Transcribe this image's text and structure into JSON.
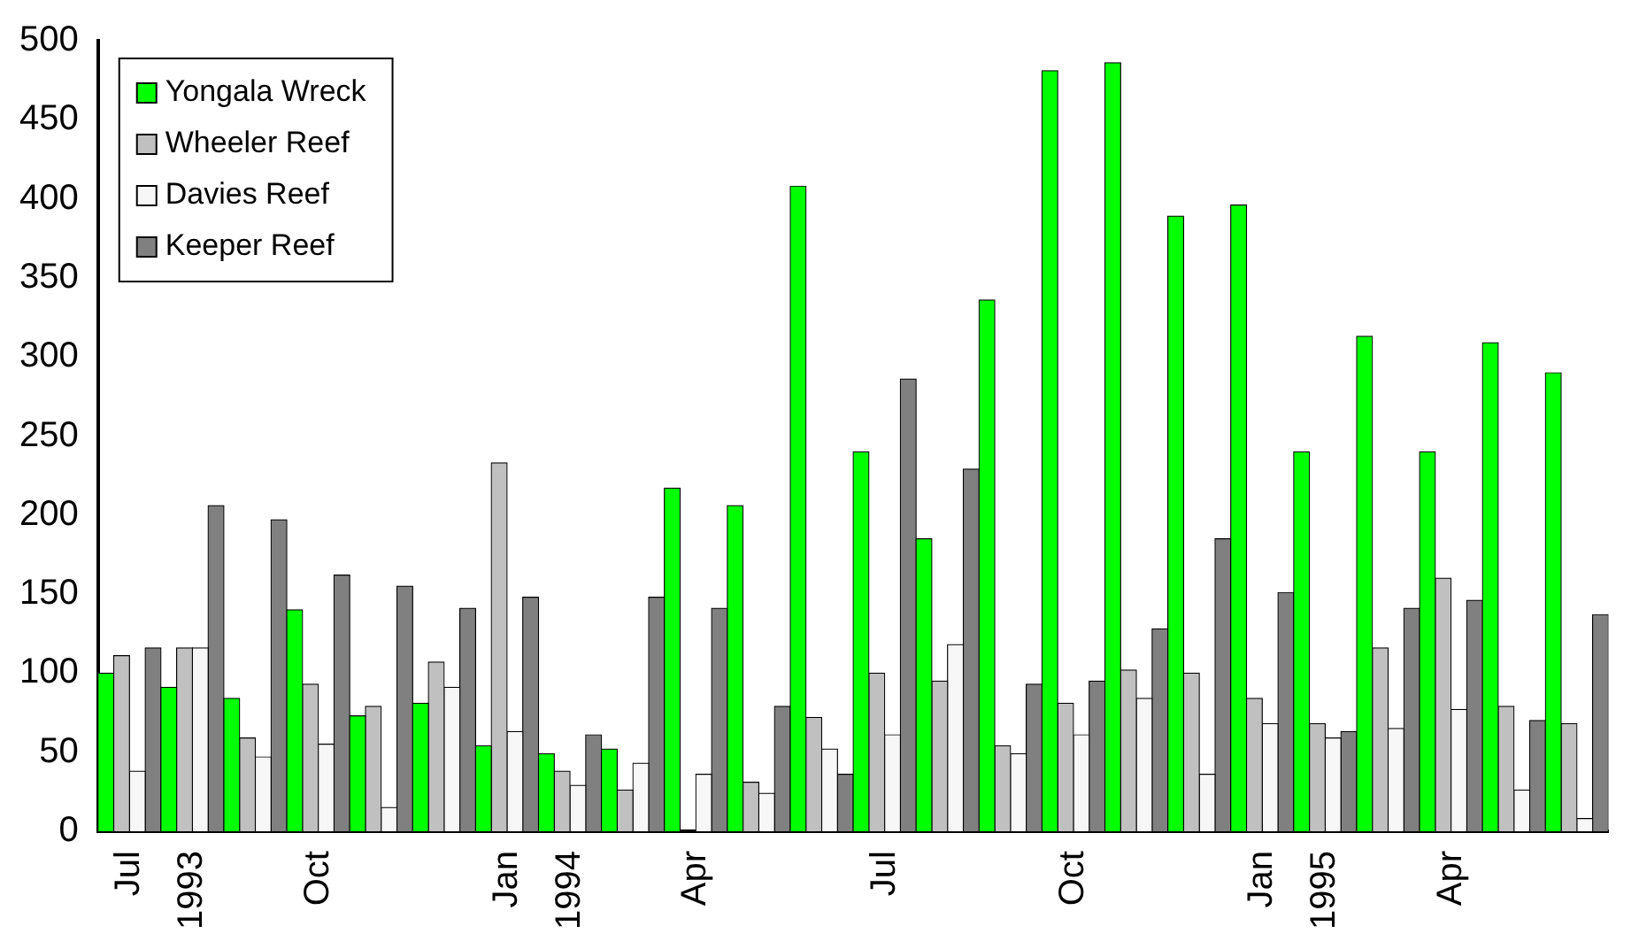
{
  "chart_data": {
    "type": "bar",
    "categories": [
      "Jul",
      "1993",
      null,
      "Oct",
      null,
      null,
      "Jan",
      "1994",
      null,
      "Apr",
      null,
      null,
      "Jul",
      null,
      null,
      "Oct",
      null,
      null,
      "Jan",
      "1995",
      null,
      "Apr",
      null,
      null
    ],
    "series": [
      {
        "name": "Yongala Wreck",
        "color": "#00ff00",
        "values": [
          100,
          91,
          84,
          140,
          73,
          81,
          54,
          49,
          52,
          217,
          206,
          408,
          240,
          185,
          336,
          481,
          486,
          389,
          396,
          240,
          313,
          240,
          309,
          290
        ]
      },
      {
        "name": "Wheeler Reef",
        "color": "#c0c0c0",
        "values": [
          111,
          116,
          59,
          93,
          79,
          107,
          233,
          38,
          26,
          null,
          31,
          72,
          100,
          95,
          54,
          81,
          102,
          100,
          84,
          68,
          116,
          160,
          79,
          68
        ]
      },
      {
        "name": "Davies Reef",
        "color": "#f7f7f7",
        "values": [
          38,
          116,
          47,
          55,
          15,
          91,
          63,
          29,
          43,
          36,
          24,
          52,
          61,
          118,
          49,
          61,
          84,
          36,
          68,
          59,
          65,
          77,
          26,
          8
        ]
      },
      {
        "name": "Keeper Reef",
        "color": "#808080",
        "values": [
          116,
          206,
          197,
          162,
          155,
          141,
          148,
          61,
          148,
          141,
          79,
          36,
          286,
          229,
          93,
          95,
          128,
          185,
          151,
          63,
          141,
          146,
          70,
          137
        ]
      }
    ],
    "ylim": [
      0,
      500
    ],
    "yticks": [
      0,
      50,
      100,
      150,
      200,
      250,
      300,
      350,
      400,
      450,
      500
    ],
    "grid": false,
    "legend": "top left"
  }
}
